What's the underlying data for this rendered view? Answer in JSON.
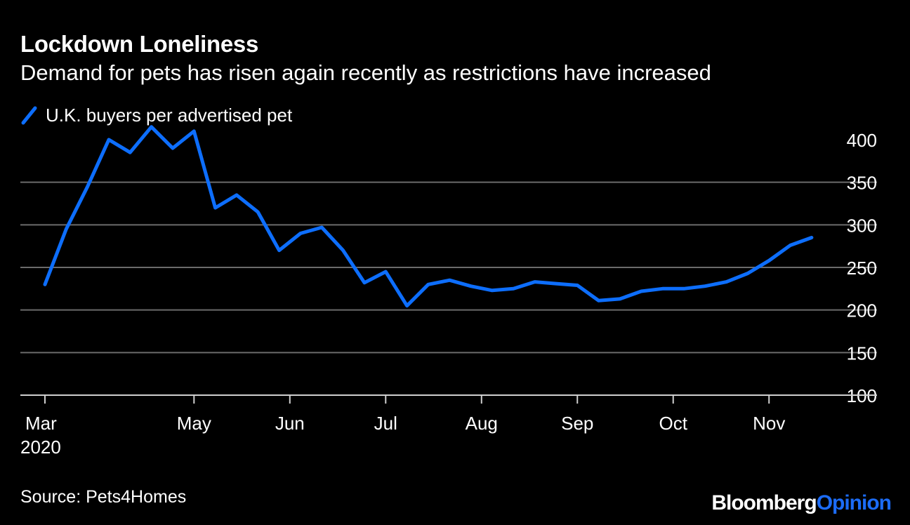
{
  "header": {
    "title": "Lockdown Loneliness",
    "subtitle": "Demand for pets has risen again recently as restrictions have increased"
  },
  "footer": {
    "source": "Source: Pets4Homes",
    "brand_main": "Bloomberg",
    "brand_accent": "Opinion"
  },
  "colors": {
    "line": "#0d6efd",
    "grid": "#6b6b6b",
    "axis": "#cfcfcf",
    "brand_accent": "#1c6cf6"
  },
  "chart_data": {
    "type": "line",
    "title": "Lockdown Loneliness",
    "subtitle": "Demand for pets has risen again recently as restrictions have increased",
    "xlabel": "",
    "ylabel": "",
    "ylim": [
      100,
      400
    ],
    "yticks": [
      100,
      150,
      200,
      250,
      300,
      350,
      400
    ],
    "xlim": [
      0,
      37
    ],
    "xticks": [
      {
        "x": 0,
        "label": "Mar",
        "sublabel": "2020"
      },
      {
        "x": 7,
        "label": "May"
      },
      {
        "x": 11.5,
        "label": "Jun"
      },
      {
        "x": 16,
        "label": "Jul"
      },
      {
        "x": 20.5,
        "label": "Aug"
      },
      {
        "x": 25,
        "label": "Sep"
      },
      {
        "x": 29.5,
        "label": "Oct"
      },
      {
        "x": 34,
        "label": "Nov"
      }
    ],
    "legend_position": "top-left",
    "series": [
      {
        "name": "U.K. buyers per advertised pet",
        "x": [
          0,
          1,
          2,
          3,
          4,
          5,
          6,
          7,
          8,
          9,
          10,
          11,
          12,
          13,
          14,
          15,
          16,
          17,
          18,
          19,
          20,
          21,
          22,
          23,
          24,
          25,
          26,
          27,
          28,
          29,
          30,
          31,
          32,
          33,
          34,
          35,
          36
        ],
        "values": [
          230,
          295,
          345,
          400,
          385,
          415,
          390,
          410,
          320,
          335,
          315,
          270,
          290,
          297,
          270,
          232,
          245,
          205,
          230,
          235,
          228,
          223,
          225,
          233,
          231,
          229,
          211,
          213,
          222,
          225,
          225,
          228,
          233,
          243,
          258,
          276,
          285
        ]
      }
    ]
  }
}
